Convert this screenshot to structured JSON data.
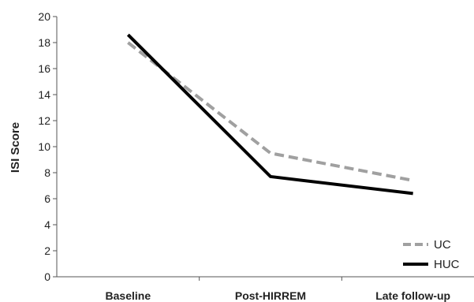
{
  "chart_data": {
    "type": "line",
    "categories": [
      "Baseline",
      "Post-HIRREM",
      "Late follow-up"
    ],
    "ylabel": "ISI Score",
    "xlabel": "",
    "ylim": [
      0,
      20
    ],
    "yticks": [
      0,
      2,
      4,
      6,
      8,
      10,
      12,
      14,
      16,
      18,
      20
    ],
    "grid": false,
    "legend_position": "bottom-right",
    "series": [
      {
        "name": "UC",
        "values": [
          18.0,
          9.5,
          7.4
        ],
        "color": "#a0a0a0",
        "style": "dashed"
      },
      {
        "name": "HUC",
        "values": [
          18.6,
          7.7,
          6.4
        ],
        "color": "#000000",
        "style": "solid"
      }
    ]
  }
}
